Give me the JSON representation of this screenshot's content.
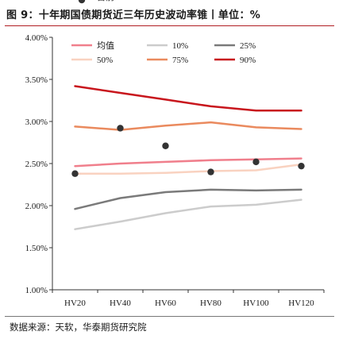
{
  "title": "图 9：十年期国债期货近三年历史波动率锥丨单位：%",
  "source": "数据来源：天软，华泰期货研究院",
  "chart_data": {
    "type": "line",
    "categories": [
      "HV20",
      "HV40",
      "HV60",
      "HV80",
      "HV100",
      "HV120"
    ],
    "ylim": [
      1.0,
      4.0
    ],
    "yticks": [
      "1.00%",
      "1.50%",
      "2.00%",
      "2.50%",
      "3.00%",
      "3.50%",
      "4.00%"
    ],
    "legend_position": "top",
    "series": [
      {
        "name": "均值",
        "kind": "line",
        "color": "#f07f8c",
        "width": 2.5,
        "values": [
          2.47,
          2.5,
          2.52,
          2.54,
          2.55,
          2.56
        ]
      },
      {
        "name": "10%",
        "kind": "line",
        "color": "#cccccc",
        "width": 2.5,
        "values": [
          1.72,
          1.81,
          1.91,
          1.99,
          2.01,
          2.07
        ]
      },
      {
        "name": "25%",
        "kind": "line",
        "color": "#7a7a7a",
        "width": 2.5,
        "values": [
          1.96,
          2.09,
          2.16,
          2.19,
          2.18,
          2.19
        ]
      },
      {
        "name": "50%",
        "kind": "line",
        "color": "#f9d2c0",
        "width": 2.5,
        "values": [
          2.38,
          2.38,
          2.39,
          2.41,
          2.42,
          2.49
        ]
      },
      {
        "name": "75%",
        "kind": "line",
        "color": "#ea8a5e",
        "width": 2.5,
        "values": [
          2.94,
          2.9,
          2.95,
          2.99,
          2.93,
          2.91
        ]
      },
      {
        "name": "90%",
        "kind": "line",
        "color": "#c8161d",
        "width": 2.5,
        "values": [
          3.42,
          3.34,
          3.26,
          3.18,
          3.13,
          3.13
        ]
      },
      {
        "name": "目前",
        "kind": "scatter",
        "color": "#333333",
        "values": [
          2.38,
          2.92,
          2.71,
          2.4,
          2.52,
          2.47
        ]
      }
    ]
  }
}
